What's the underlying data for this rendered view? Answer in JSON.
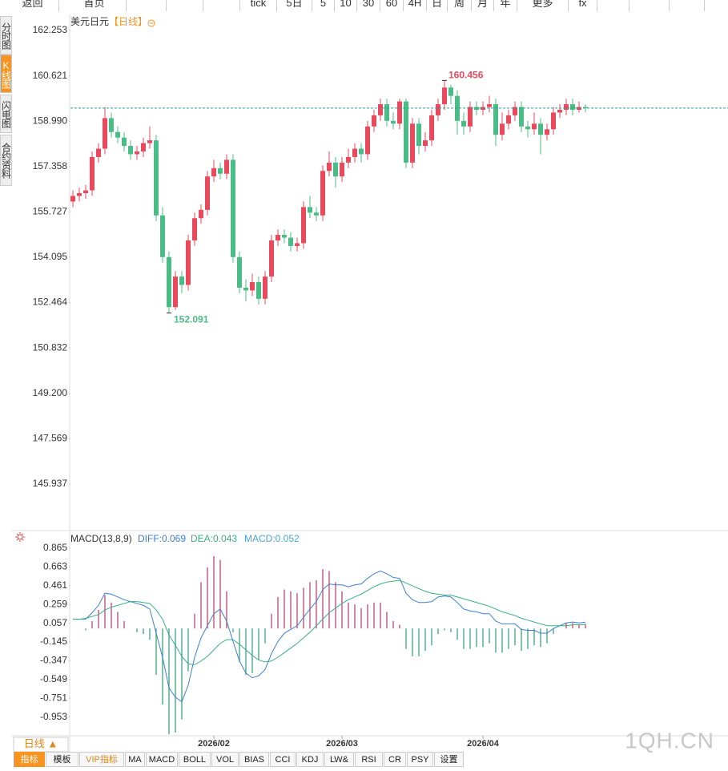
{
  "toolbar": [
    "返回",
    "首页",
    "tick",
    "5日",
    "5",
    "10",
    "30",
    "60",
    "4H",
    "日",
    "周",
    "月",
    "年",
    "更多",
    "fx"
  ],
  "side_tabs": [
    "分时图",
    "K线图",
    "闪电图",
    "合约资料"
  ],
  "chart_data": [
    {
      "type": "candlestick",
      "title": "美元日元",
      "period_label": "【日线】",
      "up_color": "#e8495d",
      "down_color": "#4cbc86",
      "last_line_color": "#2a9d9d",
      "categories": [
        null,
        null,
        null,
        null,
        null,
        null,
        null,
        null,
        null,
        null,
        null,
        null,
        null,
        null,
        null,
        null,
        null,
        null,
        null,
        null,
        null,
        null,
        "2026/02",
        null,
        null,
        null,
        null,
        null,
        null,
        null,
        null,
        null,
        null,
        null,
        null,
        null,
        null,
        null,
        null,
        null,
        null,
        null,
        "2026/03",
        null,
        null,
        null,
        null,
        null,
        null,
        null,
        null,
        null,
        null,
        null,
        null,
        null,
        null,
        null,
        null,
        null,
        null,
        null,
        null,
        null,
        "2026/04",
        null,
        null,
        null,
        null,
        null,
        null,
        null,
        null,
        null,
        null,
        null,
        null,
        null,
        null,
        null,
        null
      ],
      "open": [
        156.1,
        156.3,
        156.4,
        156.5,
        157.7,
        158.0,
        159.1,
        158.6,
        158.4,
        158.1,
        157.8,
        157.9,
        158.2,
        158.3,
        155.6,
        154.1,
        152.3,
        153.4,
        153.1,
        154.7,
        155.5,
        155.8,
        157.0,
        157.3,
        157.1,
        157.6,
        154.1,
        153.0,
        152.9,
        153.2,
        152.6,
        153.4,
        154.7,
        154.9,
        154.8,
        154.5,
        154.6,
        155.9,
        155.7,
        155.6,
        157.2,
        157.5,
        157.0,
        157.5,
        157.7,
        158.0,
        157.8,
        158.8,
        159.2,
        159.6,
        159.0,
        158.9,
        159.7,
        157.5,
        158.9,
        158.1,
        158.3,
        159.2,
        159.6,
        160.2,
        159.9,
        159.0,
        158.8,
        159.5,
        159.4,
        159.5,
        159.6,
        158.5,
        158.9,
        159.2,
        159.5,
        158.8,
        158.7,
        158.9,
        158.5,
        158.7,
        159.3,
        159.4,
        159.6,
        159.4,
        159.5
      ],
      "high": [
        156.5,
        156.6,
        156.7,
        157.9,
        158.2,
        159.5,
        159.3,
        158.8,
        158.6,
        158.3,
        158.1,
        158.4,
        158.8,
        158.5,
        155.9,
        154.3,
        153.6,
        153.6,
        154.9,
        155.7,
        156.0,
        157.2,
        157.6,
        157.5,
        157.8,
        157.8,
        154.3,
        153.3,
        153.5,
        153.4,
        153.6,
        154.9,
        155.1,
        155.1,
        155.0,
        154.8,
        156.1,
        156.3,
        155.9,
        157.4,
        157.9,
        157.7,
        157.7,
        158.0,
        158.2,
        158.2,
        159.0,
        159.4,
        159.8,
        159.8,
        159.3,
        159.8,
        159.8,
        159.1,
        159.1,
        158.6,
        159.4,
        159.8,
        160.456,
        160.3,
        160.1,
        159.3,
        159.7,
        159.7,
        159.7,
        159.9,
        159.8,
        159.3,
        159.4,
        159.7,
        159.7,
        159.0,
        159.3,
        159.1,
        158.9,
        159.5,
        159.6,
        159.8,
        159.8,
        159.7,
        159.6
      ],
      "low": [
        155.9,
        156.1,
        156.2,
        156.3,
        157.5,
        157.8,
        158.4,
        158.2,
        157.9,
        157.6,
        157.6,
        157.7,
        158.0,
        155.4,
        153.9,
        152.091,
        152.2,
        152.8,
        152.9,
        154.5,
        155.3,
        155.6,
        156.8,
        156.9,
        156.9,
        153.9,
        152.8,
        152.5,
        152.7,
        152.4,
        152.4,
        153.2,
        154.5,
        154.6,
        154.3,
        154.3,
        154.4,
        155.5,
        155.4,
        155.4,
        157.0,
        156.6,
        156.8,
        157.3,
        157.5,
        157.5,
        157.6,
        158.6,
        159.0,
        158.8,
        158.7,
        158.7,
        157.3,
        157.3,
        157.8,
        157.9,
        158.1,
        159.0,
        159.4,
        159.6,
        158.5,
        158.5,
        158.6,
        159.2,
        159.2,
        159.3,
        158.1,
        158.3,
        158.7,
        159.0,
        158.6,
        158.4,
        158.5,
        157.8,
        158.3,
        158.5,
        159.1,
        159.2,
        159.2,
        159.3,
        159.3
      ],
      "close": [
        156.3,
        156.4,
        156.5,
        157.7,
        158.0,
        159.1,
        158.6,
        158.4,
        158.1,
        157.8,
        157.9,
        158.2,
        158.3,
        155.6,
        154.1,
        152.3,
        153.4,
        153.1,
        154.7,
        155.5,
        155.8,
        157.0,
        157.3,
        157.1,
        157.6,
        154.1,
        153.0,
        152.9,
        153.2,
        152.6,
        153.4,
        154.7,
        154.9,
        154.8,
        154.5,
        154.6,
        155.9,
        155.7,
        155.6,
        157.2,
        157.5,
        157.0,
        157.5,
        157.7,
        158.0,
        157.8,
        158.8,
        159.2,
        159.6,
        159.0,
        158.9,
        159.7,
        157.5,
        158.9,
        158.1,
        158.3,
        159.2,
        159.6,
        160.2,
        159.9,
        159.0,
        158.8,
        159.5,
        159.4,
        159.5,
        159.6,
        158.5,
        158.9,
        159.2,
        159.5,
        158.8,
        158.7,
        158.9,
        158.5,
        158.7,
        159.3,
        159.4,
        159.6,
        159.4,
        159.5,
        159.46
      ],
      "ylim": [
        144.32,
        162.83
      ],
      "yticks": [
        162.253,
        160.621,
        {
          "value": 158.99,
          "label": "158.990"
        },
        157.358,
        155.727,
        154.095,
        152.464,
        150.832,
        {
          "value": 149.2,
          "label": "149.200"
        },
        147.569,
        145.937
      ],
      "grid": false
    },
    {
      "type": "macd",
      "title": "MACD(13,8,9)",
      "legend_labels": [
        "DIFF:0.069",
        "DEA:0.043",
        "MACD:0.052"
      ],
      "series": [
        {
          "name": "DIFF",
          "color": "#3b7fd9",
          "values": [
            0.1,
            0.1,
            0.1,
            0.17,
            0.25,
            0.38,
            0.37,
            0.34,
            0.31,
            0.29,
            0.27,
            0.25,
            0.21,
            -0.05,
            -0.31,
            -0.64,
            -0.74,
            -0.79,
            -0.61,
            -0.31,
            -0.1,
            0.03,
            0.16,
            0.21,
            0.08,
            -0.14,
            -0.35,
            -0.48,
            -0.53,
            -0.51,
            -0.44,
            -0.27,
            -0.14,
            -0.05,
            -0.01,
            0.03,
            0.12,
            0.21,
            0.29,
            0.42,
            0.48,
            0.47,
            0.47,
            0.45,
            0.47,
            0.48,
            0.54,
            0.59,
            0.62,
            0.59,
            0.55,
            0.54,
            0.38,
            0.31,
            0.28,
            0.28,
            0.29,
            0.34,
            0.35,
            0.34,
            0.28,
            0.21,
            0.19,
            0.18,
            0.16,
            0.16,
            0.08,
            0.05,
            0.05,
            0.05,
            -0.01,
            -0.02,
            -0.02,
            -0.05,
            -0.05,
            0.0,
            0.03,
            0.06,
            0.07,
            0.06,
            0.069
          ]
        },
        {
          "name": "DEA",
          "color": "#3aae86",
          "values": [
            0.1,
            0.1,
            0.11,
            0.13,
            0.15,
            0.2,
            0.23,
            0.25,
            0.27,
            0.29,
            0.29,
            0.28,
            0.27,
            0.2,
            0.1,
            -0.07,
            -0.18,
            -0.3,
            -0.38,
            -0.39,
            -0.35,
            -0.3,
            -0.23,
            -0.16,
            -0.12,
            -0.12,
            -0.17,
            -0.23,
            -0.29,
            -0.34,
            -0.36,
            -0.35,
            -0.31,
            -0.26,
            -0.21,
            -0.16,
            -0.1,
            -0.04,
            0.03,
            0.1,
            0.17,
            0.22,
            0.27,
            0.31,
            0.34,
            0.37,
            0.41,
            0.45,
            0.48,
            0.5,
            0.51,
            0.52,
            0.49,
            0.46,
            0.43,
            0.4,
            0.38,
            0.37,
            0.36,
            0.36,
            0.34,
            0.32,
            0.3,
            0.28,
            0.26,
            0.24,
            0.21,
            0.18,
            0.16,
            0.14,
            0.11,
            0.09,
            0.07,
            0.05,
            0.03,
            0.03,
            0.03,
            0.03,
            0.04,
            0.04,
            0.043
          ]
        },
        {
          "name": "MACD",
          "color": "#c4456c",
          "negative_color": "#3aa37a",
          "label_color": "#4aa3df",
          "values": [
            0,
            0,
            -0.02,
            0.08,
            0.2,
            0.36,
            0.28,
            0.18,
            0.08,
            0,
            -0.04,
            -0.06,
            -0.12,
            -0.5,
            -0.82,
            -1.14,
            -1.12,
            -0.98,
            -0.46,
            0.16,
            0.5,
            0.66,
            0.78,
            0.74,
            0.4,
            -0.04,
            -0.36,
            -0.5,
            -0.48,
            -0.34,
            -0.16,
            0.16,
            0.34,
            0.42,
            0.4,
            0.38,
            0.44,
            0.5,
            0.52,
            0.64,
            0.62,
            0.5,
            0.4,
            0.28,
            0.26,
            0.22,
            0.26,
            0.28,
            0.28,
            0.18,
            0.08,
            0.04,
            -0.22,
            -0.3,
            -0.3,
            -0.24,
            -0.18,
            -0.06,
            -0.02,
            -0.04,
            -0.12,
            -0.22,
            -0.22,
            -0.2,
            -0.2,
            -0.16,
            -0.26,
            -0.26,
            -0.22,
            -0.18,
            -0.24,
            -0.22,
            -0.18,
            -0.2,
            -0.16,
            -0.06,
            0,
            0.06,
            0.06,
            0.04,
            0.052
          ]
        }
      ],
      "ylim": [
        -1.155,
        0.943
      ],
      "yticks": [
        0.865,
        0.663,
        0.461,
        0.259,
        0.057,
        -0.145,
        -0.347,
        -0.549,
        -0.751,
        -0.953
      ]
    }
  ],
  "period_button": "日线 ▲",
  "indicator_tabs": [
    "指标",
    "模板",
    "VIP指标",
    "MA",
    "MACD",
    "BOLL",
    "VOL",
    "BIAS",
    "CCI",
    "KDJ",
    "LW&",
    "RSI",
    "CR",
    "PSY",
    "设置"
  ],
  "watermark": "1QH.CN"
}
